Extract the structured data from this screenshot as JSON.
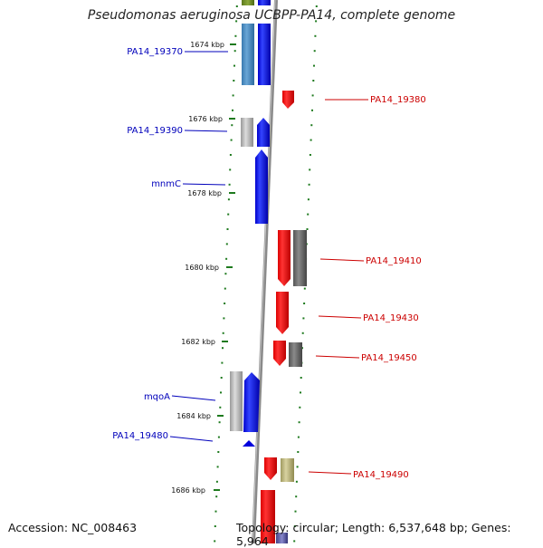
{
  "header": {
    "title": "Pseudomonas aeruginosa UCBPP-PA14, complete genome"
  },
  "footer": {
    "accession": "Accession: NC_008463",
    "summary": "Topology: circular; Length: 6,537,648 bp; Genes: 5,964"
  },
  "colors": {
    "backbone": "#8a8a8a",
    "tick_dot": "#1e7a1e",
    "left_label": "#0000bb",
    "right_label": "#cc0000"
  },
  "kbp_markers": [
    "1674 kbp",
    "1676 kbp",
    "1678 kbp",
    "1680 kbp",
    "1682 kbp",
    "1684 kbp",
    "1686 kbp"
  ],
  "gene_labels": {
    "left": [
      "PA14_19370",
      "PA14_19390",
      "mnmC",
      "mqoA",
      "PA14_19480"
    ],
    "right": [
      "PA14_19380",
      "PA14_19410",
      "PA14_19430",
      "PA14_19450",
      "PA14_19490"
    ]
  }
}
